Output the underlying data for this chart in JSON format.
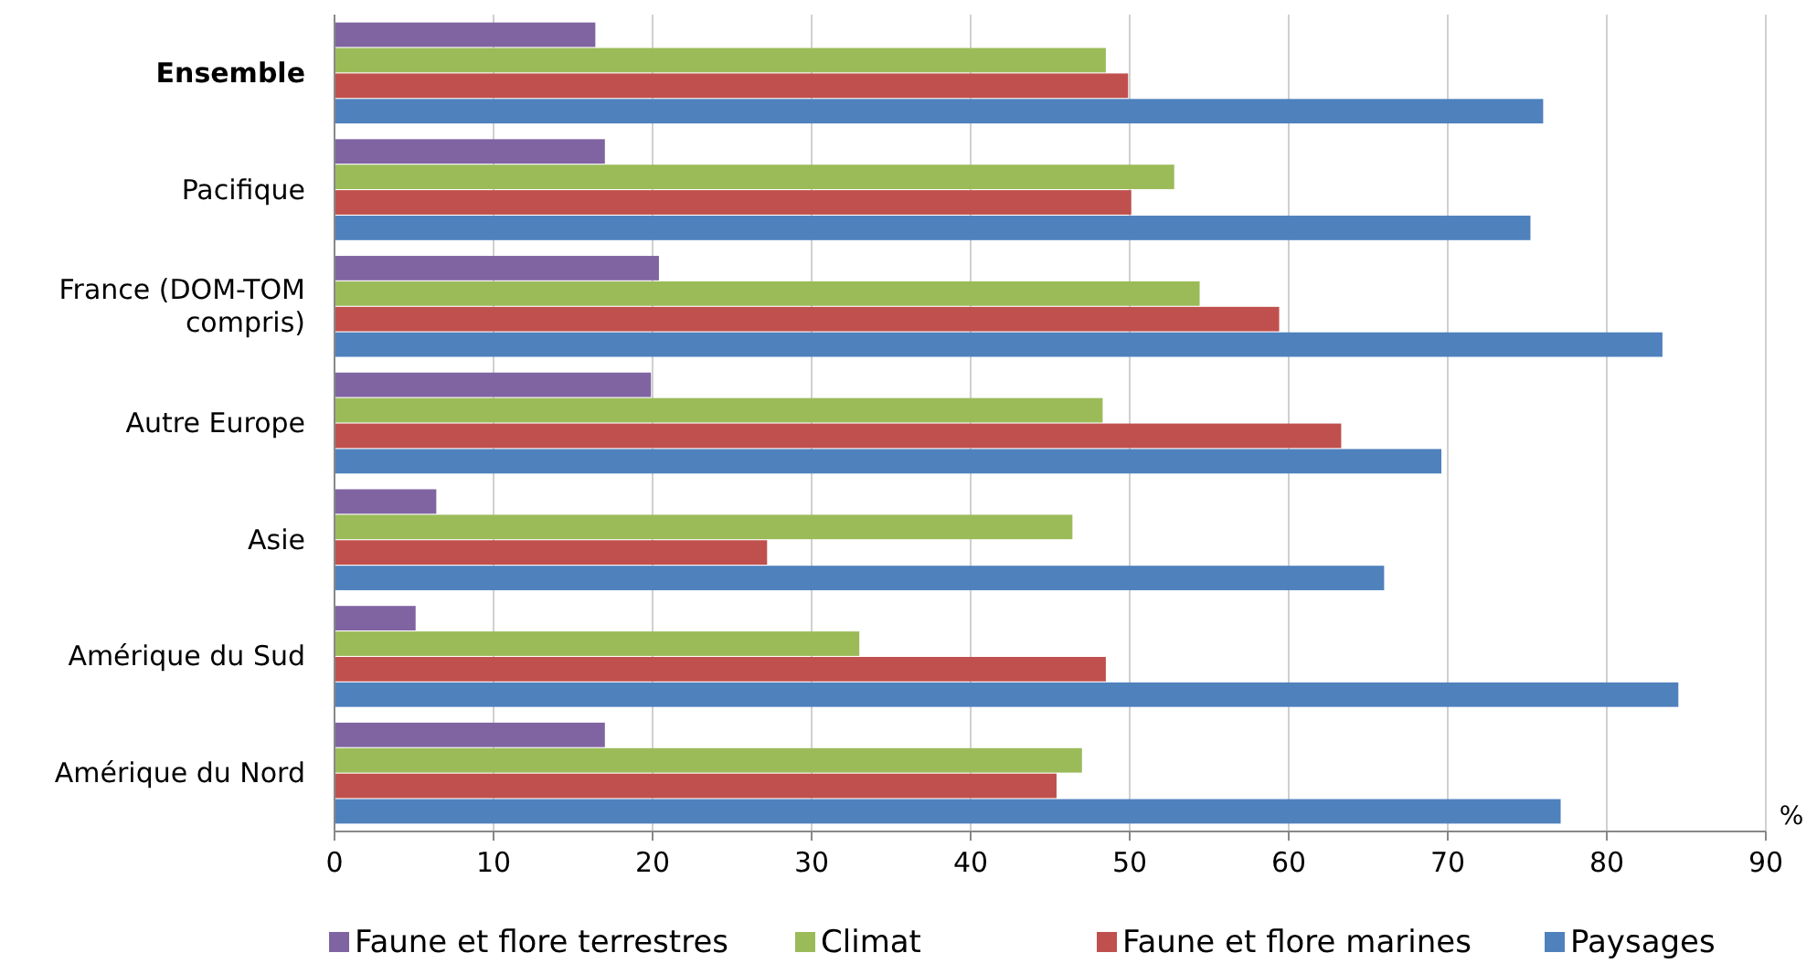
{
  "chart_data": {
    "type": "bar",
    "orientation": "horizontal",
    "xlabel": "%",
    "categories": [
      "Ensemble",
      "Pacifique",
      "France (DOM-TOM compris)",
      "Autre Europe",
      "Asie",
      "Amérique du Sud",
      "Amérique du Nord"
    ],
    "series": [
      {
        "name": "Faune et flore terrestres",
        "color": "#8064a2",
        "values": [
          16.4,
          17.0,
          20.4,
          19.9,
          6.4,
          5.1,
          17.0
        ]
      },
      {
        "name": "Climat",
        "color": "#9bbb59",
        "values": [
          48.5,
          52.8,
          54.4,
          48.3,
          46.4,
          33.0,
          47.0
        ]
      },
      {
        "name": "Faune et flore marines",
        "color": "#c0504d",
        "values": [
          49.9,
          50.1,
          59.4,
          63.3,
          27.2,
          48.5,
          45.4
        ]
      },
      {
        "name": "Paysages",
        "color": "#4f81bd",
        "values": [
          76.0,
          75.2,
          83.5,
          69.6,
          66.0,
          84.5,
          77.1
        ]
      }
    ],
    "xlim": [
      0,
      90
    ],
    "xticks": [
      0,
      10,
      20,
      30,
      40,
      50,
      60,
      70,
      80,
      90
    ],
    "grid": "x",
    "legend": "bottom"
  }
}
